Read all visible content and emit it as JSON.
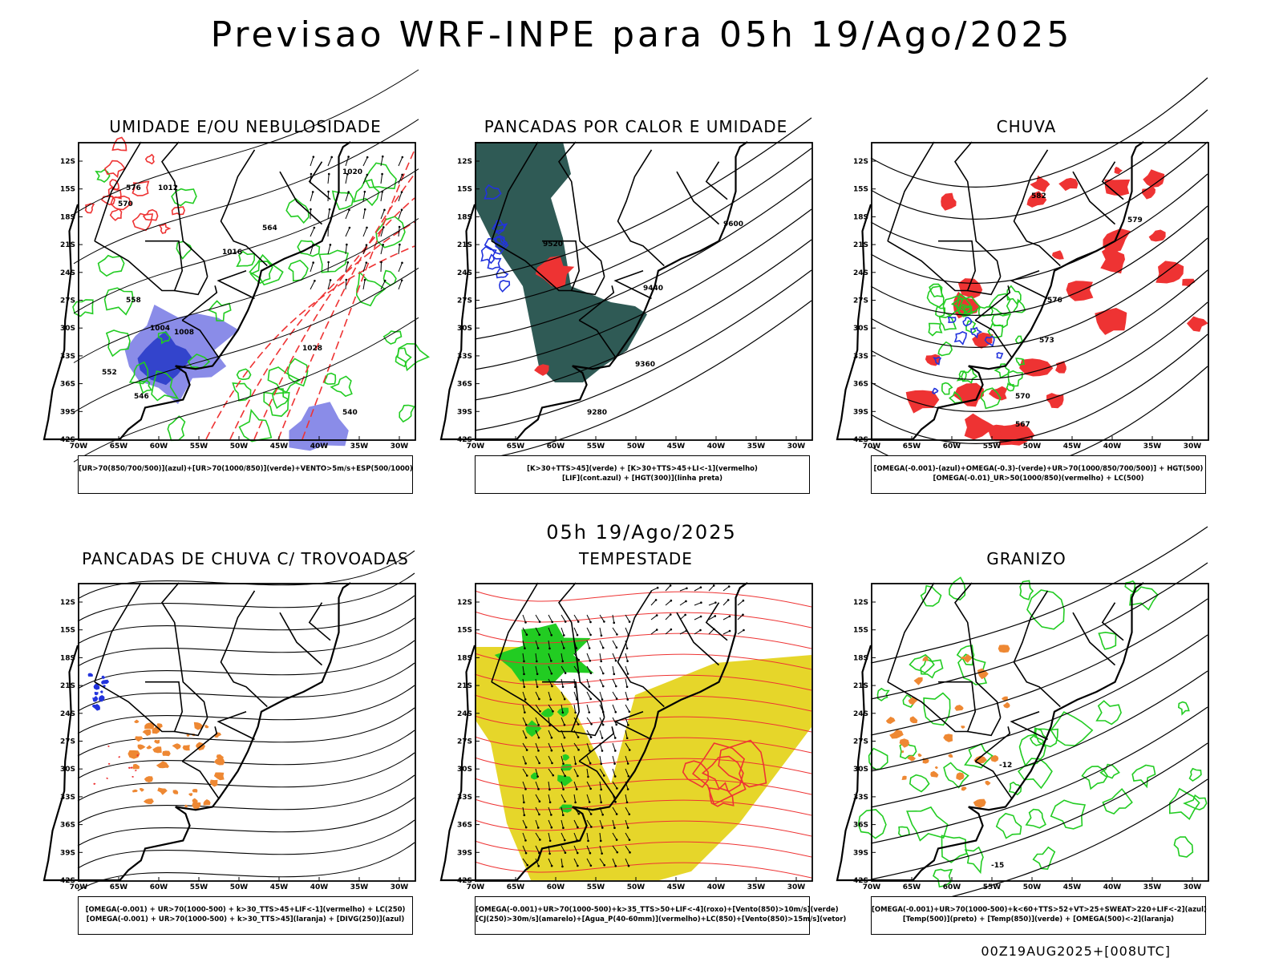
{
  "header": {
    "title": "Previsao WRF-INPE  para 05h 19/Ago/2025",
    "mid_date": "05h 19/Ago/2025",
    "run_stamp": "00Z19AUG2025+[008UTC]"
  },
  "axes": {
    "lat_ticks": [
      "12S",
      "15S",
      "18S",
      "21S",
      "24S",
      "27S",
      "30S",
      "33S",
      "36S",
      "39S",
      "42S"
    ],
    "lon_ticks": [
      "70W",
      "65W",
      "60W",
      "55W",
      "50W",
      "45W",
      "40W",
      "35W",
      "30W"
    ]
  },
  "panels": [
    {
      "title": "UMIDADE E/OU NEBULOSIDADE",
      "legend": [
        "[UR>70(850/700/500)](azul)+[UR>70(1000/850)](verde)+VENTO>5m/s+ESP(500/1000)"
      ],
      "labels": [
        "1020",
        "1016",
        "1012",
        "1008",
        "1004",
        "1028",
        "576",
        "570",
        "564",
        "558",
        "552",
        "546",
        "540"
      ]
    },
    {
      "title": "PANCADAS POR CALOR E UMIDADE",
      "legend": [
        "[K>30+TTS>45](verde) + [K>30+TTS>45+LI<-1](vermelho)",
        "[LIF](cont.azul) + [HGT(300)](linha preta)"
      ],
      "labels": [
        "9600",
        "9520",
        "9440",
        "9360",
        "9280"
      ]
    },
    {
      "title": "CHUVA",
      "legend": [
        "[OMEGA(-0.001)-(azul)+OMEGA(-0.3)-(verde)+UR>70(1000/850/700/500)] + HGT(500)",
        "[OMEGA(-0.01)_UR>50(1000/850)(vermelho) + LC(500)"
      ],
      "labels": [
        "582",
        "579",
        "576",
        "573",
        "570",
        "567"
      ]
    },
    {
      "title": "PANCADAS DE CHUVA C/ TROVOADAS",
      "legend": [
        "[OMEGA(-0.001) + UR>70(1000-500) + k>30_TTS>45+LIF<-1](vermelho) + LC(250)",
        "[OMEGA(-0.001) + UR>70(1000-500) + k>30_TTS>45](laranja) + [DIVG(250)](azul)"
      ],
      "labels": []
    },
    {
      "title": "TEMPESTADE",
      "legend": [
        "[OMEGA(-0.001)+UR>70(1000-500)+k>35_TTS>50+LIF<-4](roxo)+[Vento(850)>10m/s](verde)",
        "[CJ(250)>30m/s](amarelo)+[Agua_P(40-60mm)](vermelho)+LC(850)+[Vento(850)>15m/s](vetor)"
      ],
      "labels": []
    },
    {
      "title": "GRANIZO",
      "legend": [
        "[OMEGA(-0.001)+UR>70(1000-500)+k<60+TTS>52+VT>25+SWEAT>220+LIF<-2](azul)",
        "[Temp(500)](preto) + [Temp(850)](verde) + [OMEGA(500)<-2](laranja)"
      ],
      "labels": [
        "-12",
        "-15"
      ]
    }
  ],
  "chart_data": [
    {
      "type": "heatmap",
      "title": "UMIDADE E/OU NEBULOSIDADE",
      "xlabel": "",
      "ylabel": "",
      "xlim": [
        "70W",
        "30W"
      ],
      "ylim": [
        "12S",
        "42S"
      ],
      "series": [
        {
          "name": "UR>70(850/700/500) azul"
        },
        {
          "name": "UR>70(1000/850) verde"
        },
        {
          "name": "ESP(500/1000)"
        }
      ],
      "isobar_labels": [
        1028,
        1020,
        1016,
        1012,
        1008,
        1004
      ],
      "thickness_labels": [
        576,
        570,
        564,
        558,
        552,
        546,
        540
      ]
    },
    {
      "type": "heatmap",
      "title": "PANCADAS POR CALOR E UMIDADE",
      "xlim": [
        "70W",
        "30W"
      ],
      "ylim": [
        "12S",
        "42S"
      ],
      "series": [
        {
          "name": "K>30+TTS>45 verde"
        },
        {
          "name": "K>30+TTS>45+LI<-1 vermelho"
        },
        {
          "name": "LIF cont.azul"
        },
        {
          "name": "HGT(300) linha preta"
        }
      ],
      "hgt300_labels": [
        9600,
        9520,
        9440,
        9360,
        9280
      ]
    },
    {
      "type": "heatmap",
      "title": "CHUVA",
      "xlim": [
        "70W",
        "30W"
      ],
      "ylim": [
        "12S",
        "42S"
      ],
      "series": [
        {
          "name": "OMEGA(-0.001) azul"
        },
        {
          "name": "OMEGA(-0.3) verde"
        },
        {
          "name": "OMEGA(-0.01)_UR>50 vermelho"
        },
        {
          "name": "HGT(500)"
        }
      ],
      "hgt500_labels": [
        582,
        579,
        576,
        573,
        570,
        567
      ]
    },
    {
      "type": "heatmap",
      "title": "PANCADAS DE CHUVA C/ TROVOADAS",
      "xlim": [
        "70W",
        "30W"
      ],
      "ylim": [
        "12S",
        "42S"
      ],
      "series": [
        {
          "name": "vermelho"
        },
        {
          "name": "laranja"
        },
        {
          "name": "DIVG(250) azul"
        },
        {
          "name": "LC(250)"
        }
      ]
    },
    {
      "type": "heatmap",
      "title": "TEMPESTADE",
      "xlim": [
        "70W",
        "30W"
      ],
      "ylim": [
        "12S",
        "42S"
      ],
      "series": [
        {
          "name": "Vento(850)>10m/s verde"
        },
        {
          "name": "CJ(250)>30m/s amarelo"
        },
        {
          "name": "Agua_P(40-60mm) vermelho"
        },
        {
          "name": "Vento(850)>15m/s vetor"
        }
      ]
    },
    {
      "type": "heatmap",
      "title": "GRANIZO",
      "xlim": [
        "70W",
        "30W"
      ],
      "ylim": [
        "12S",
        "42S"
      ],
      "series": [
        {
          "name": "Temp(500) preto"
        },
        {
          "name": "Temp(850) verde"
        },
        {
          "name": "OMEGA(500)<-2 laranja"
        }
      ],
      "temp_labels": [
        -12,
        -15
      ]
    }
  ],
  "colors": {
    "frame": "#000000",
    "blue_humidity": "#8a8ce8",
    "green": "#22cc22",
    "red": "#ee3333",
    "teal": "#2f5a55",
    "yellow": "#e6d62a",
    "orange": "#ee8833",
    "contour": "#000000"
  }
}
